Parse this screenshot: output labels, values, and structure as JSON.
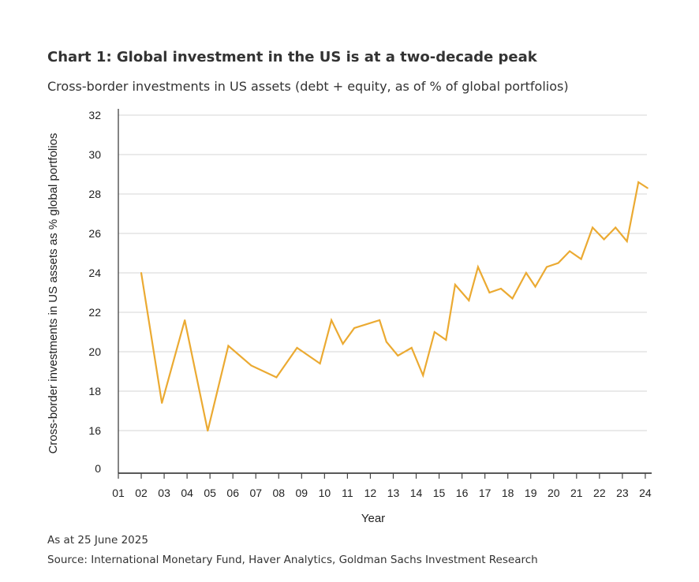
{
  "chart_data": {
    "type": "line",
    "title": "Chart 1: Global investment in the US is at a two-decade peak",
    "subtitle": "Cross-border investments in US assets (debt + equity, as of % of global portfolios)",
    "xlabel": "Year",
    "ylabel": "Cross-border investments in US assets as % global portfolios",
    "x_tick_labels": [
      "01",
      "02",
      "03",
      "04",
      "05",
      "06",
      "07",
      "08",
      "09",
      "10",
      "11",
      "12",
      "13",
      "14",
      "15",
      "16",
      "17",
      "18",
      "19",
      "20",
      "21",
      "22",
      "23",
      "24"
    ],
    "y_tick_labels": [
      "0",
      "16",
      "18",
      "20",
      "22",
      "24",
      "26",
      "28",
      "30",
      "32"
    ],
    "y_axis_break": "axis jumps from 0 to 16",
    "ylim": [
      16,
      32
    ],
    "xlim": [
      2001,
      2024
    ],
    "grid": true,
    "line_color": "#EBAA32",
    "series": [
      {
        "x": [
          2002.0,
          2002.9,
          2003.9,
          2004.9,
          2005.8,
          2006.8,
          2007.9,
          2008.8,
          2009.8,
          2010.3,
          2010.8,
          2011.3,
          2012.4,
          2012.7,
          2013.2,
          2013.8,
          2014.3,
          2014.8,
          2015.3,
          2015.7,
          2016.3,
          2016.7,
          2017.2,
          2017.7,
          2018.2,
          2018.8,
          2019.2,
          2019.7,
          2020.2,
          2020.7,
          2021.2,
          2021.7,
          2022.2,
          2022.7,
          2023.2,
          2023.7,
          2024.1
        ],
        "y": [
          24.0,
          17.4,
          21.6,
          15.9,
          20.3,
          19.3,
          18.7,
          20.2,
          19.4,
          21.6,
          20.4,
          21.2,
          21.6,
          20.5,
          19.8,
          20.2,
          18.8,
          21.0,
          20.6,
          23.4,
          22.6,
          24.3,
          23.0,
          23.2,
          22.7,
          24.0,
          23.3,
          24.3,
          24.5,
          25.1,
          24.7,
          26.3,
          25.7,
          26.3,
          25.6,
          28.6,
          28.3
        ]
      }
    ]
  },
  "footer": {
    "date_note": "As at 25 June 2025",
    "source": "Source: International Monetary Fund, Haver Analytics, Goldman Sachs Investment Research"
  }
}
